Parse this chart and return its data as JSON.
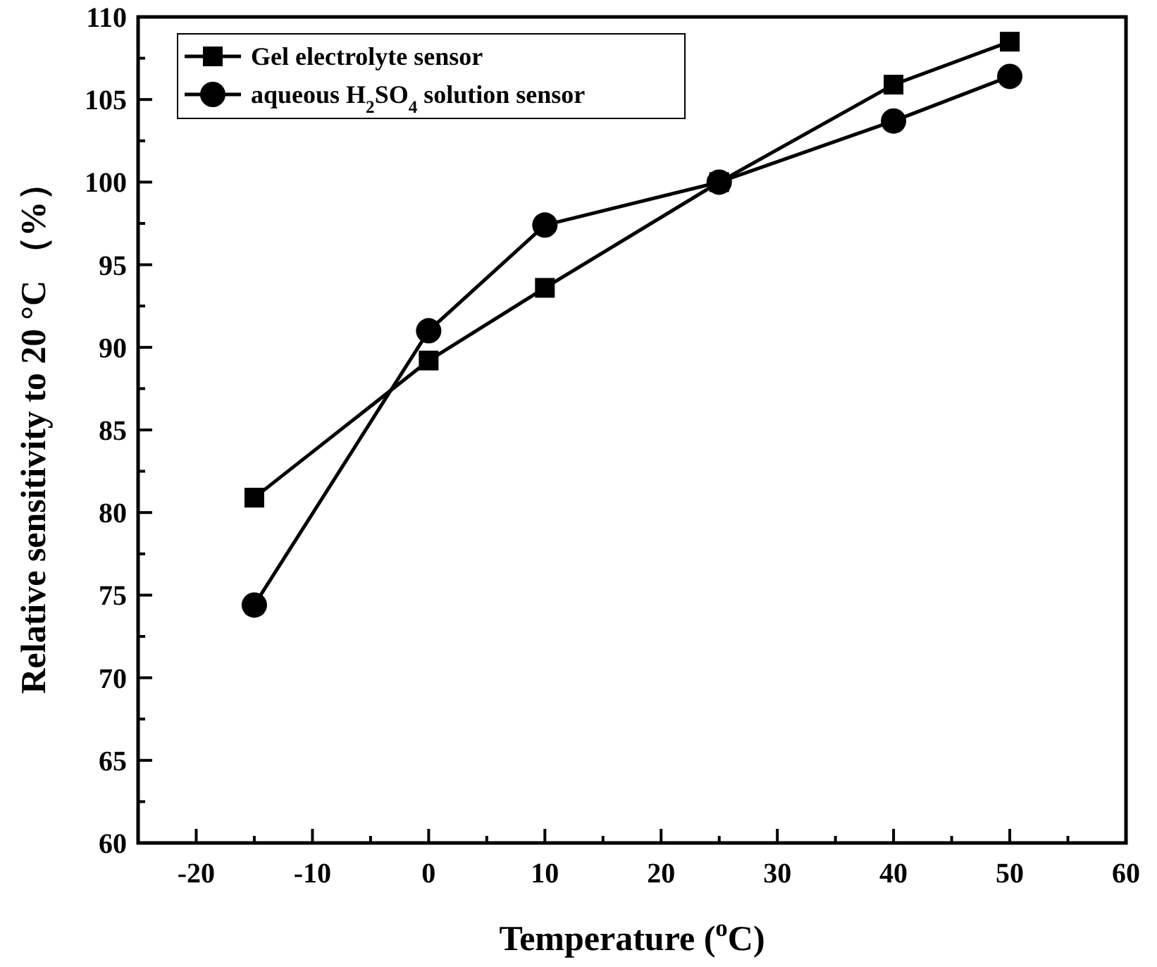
{
  "chart_data": {
    "type": "line",
    "xlabel": "Temperature ($^{o}$C)",
    "ylabel": "Relative sensitivity to 20 °C （%）",
    "x": [
      -15,
      0,
      10,
      25,
      40,
      50
    ],
    "series": [
      {
        "name": "Gel electrolyte sensor",
        "color": "#000000",
        "marker": "square",
        "values": [
          80.9,
          89.2,
          93.6,
          100,
          105.9,
          108.5
        ]
      },
      {
        "name": "aqueous H$_{2}$SO$_{4}$ solution sensor",
        "color": "#000000",
        "marker": "circle",
        "values": [
          74.4,
          91.0,
          97.4,
          100,
          103.7,
          106.4
        ]
      }
    ],
    "xlim": [
      -25,
      60
    ],
    "xticks": [
      -20,
      -10,
      0,
      10,
      20,
      30,
      40,
      50,
      60
    ],
    "ylim": [
      60,
      110
    ],
    "yticks": [
      60,
      65,
      70,
      75,
      80,
      85,
      90,
      95,
      100,
      105,
      110
    ],
    "grid": false,
    "legend": "top left",
    "line_style": "solid"
  }
}
